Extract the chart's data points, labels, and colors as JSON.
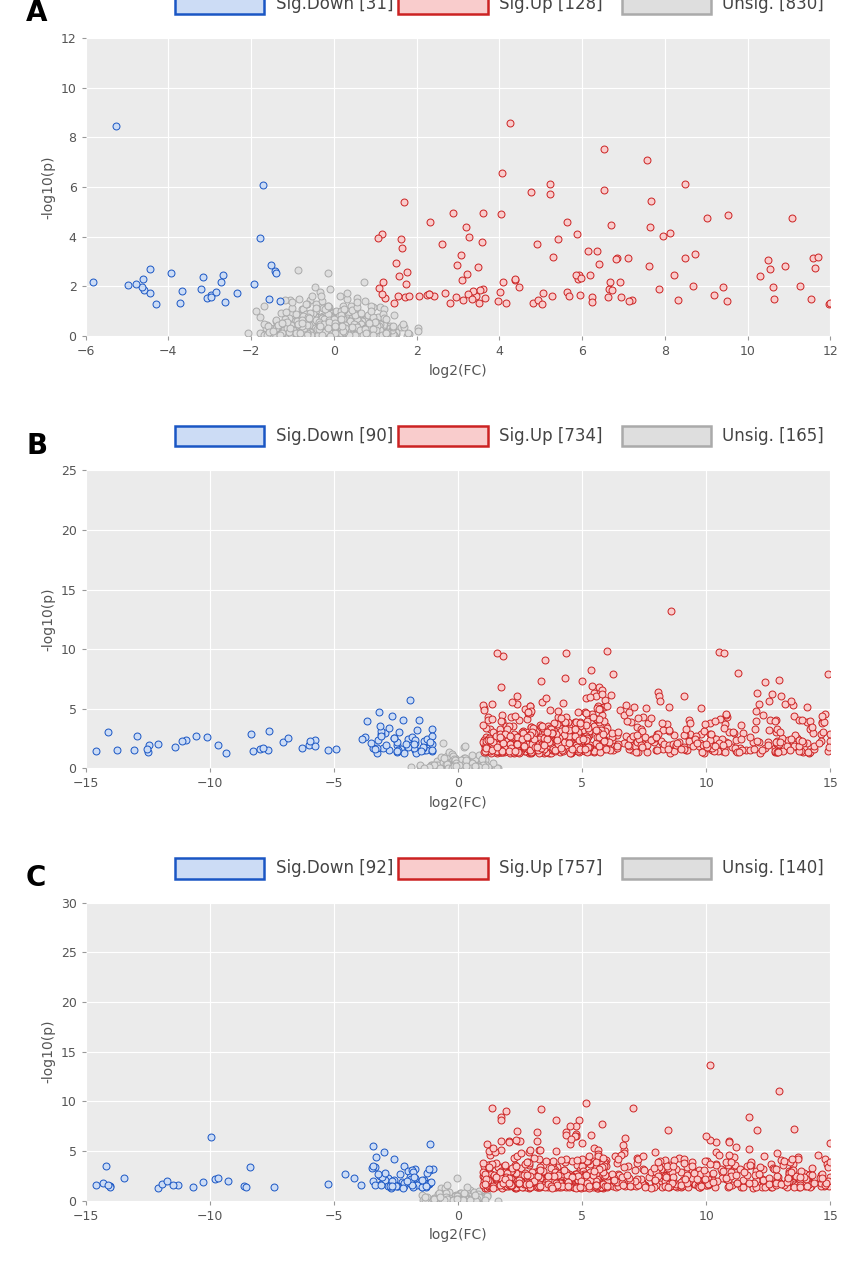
{
  "panels": [
    {
      "label": "A",
      "sig_down_count": 31,
      "sig_up_count": 128,
      "unsig_count": 830,
      "xlim": [
        -6,
        12
      ],
      "ylim": [
        0,
        12
      ],
      "xticks": [
        -6,
        -4,
        -2,
        0,
        2,
        4,
        6,
        8,
        10,
        12
      ],
      "yticks": [
        0,
        2,
        4,
        6,
        8,
        10,
        12
      ],
      "seed": 42
    },
    {
      "label": "B",
      "sig_down_count": 90,
      "sig_up_count": 734,
      "unsig_count": 165,
      "xlim": [
        -15,
        15
      ],
      "ylim": [
        0,
        25
      ],
      "xticks": [
        -15,
        -10,
        -5,
        0,
        5,
        10,
        15
      ],
      "yticks": [
        0,
        5,
        10,
        15,
        20,
        25
      ],
      "seed": 123
    },
    {
      "label": "C",
      "sig_down_count": 92,
      "sig_up_count": 757,
      "unsig_count": 140,
      "xlim": [
        -15,
        15
      ],
      "ylim": [
        0,
        30
      ],
      "xticks": [
        -15,
        -10,
        -5,
        0,
        5,
        10,
        15
      ],
      "yticks": [
        0,
        5,
        10,
        15,
        20,
        25,
        30
      ],
      "seed": 999
    }
  ],
  "xlabel": "log2(FC)",
  "ylabel": "-log10(p)",
  "blue_face": "#ccdcf5",
  "blue_edge": "#1a56c4",
  "red_face": "#f9cccc",
  "red_edge": "#cc2222",
  "gray_face": "#dedede",
  "gray_edge": "#aaaaaa",
  "bg_color": "#ebebeb",
  "marker_size": 5,
  "linewidth": 0.7,
  "label_fontsize": 20,
  "legend_fontsize": 12,
  "axis_fontsize": 10,
  "tick_fontsize": 9
}
